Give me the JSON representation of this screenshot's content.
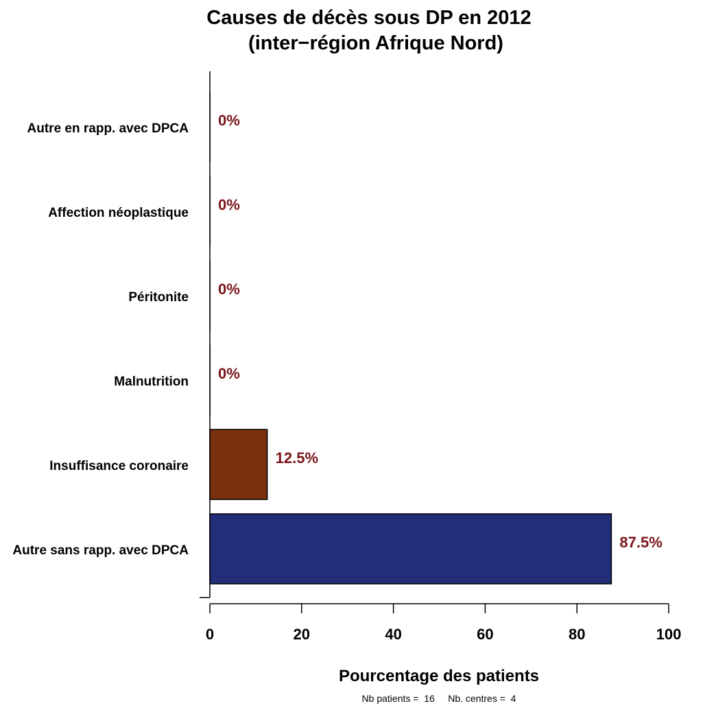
{
  "chart_data": {
    "type": "bar",
    "orientation": "horizontal",
    "title": "Causes de décès sous DP en 2012",
    "subtitle": "(inter−région Afrique Nord)",
    "xlabel": "Pourcentage des patients",
    "ylabel": "",
    "xlim": [
      0,
      100
    ],
    "xticks": [
      0,
      20,
      40,
      60,
      80,
      100
    ],
    "categories": [
      "Autre en rapp. avec DPCA",
      "Affection néoplastique",
      "Péritonite",
      "Malnutrition",
      "Insuffisance coronaire",
      "Autre sans rapp. avec DPCA"
    ],
    "values": [
      0,
      0,
      0,
      0,
      12.5,
      87.5
    ],
    "data_labels": [
      "0%",
      "0%",
      "0%",
      "0%",
      "12.5%",
      "87.5%"
    ],
    "bar_colors": [
      "#222222",
      "#222222",
      "#222222",
      "#222222",
      "#79310d",
      "#222e78"
    ],
    "label_color": "#7a1418",
    "grid": false,
    "legend": "none"
  },
  "footer": {
    "note": "Nb patients =  16     Nb. centres =  4"
  }
}
